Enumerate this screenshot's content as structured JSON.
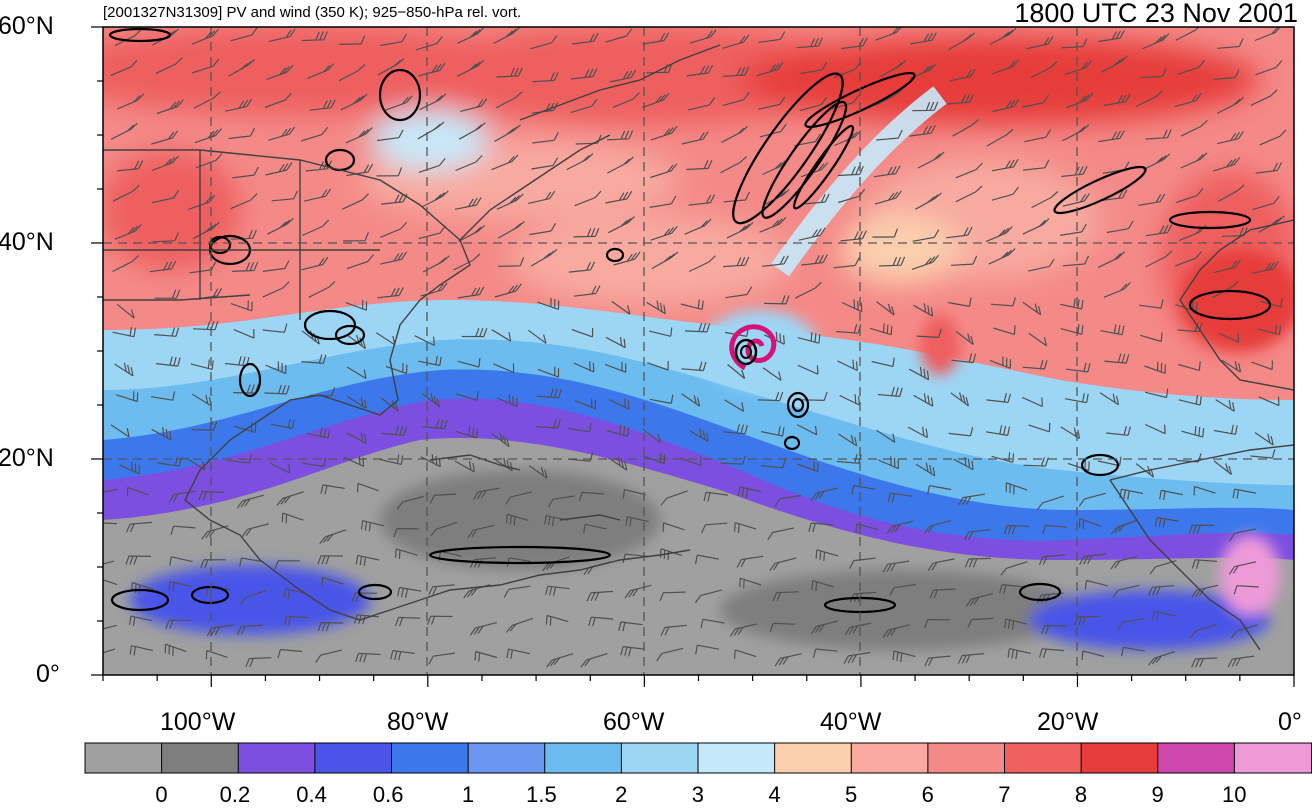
{
  "header": {
    "title_left": "[2001327N31309] PV and wind (350 K); 925−850-hPa rel. vort.",
    "title_right": "1800 UTC 23 Nov 2001"
  },
  "map": {
    "lat_labels": [
      "60°N",
      "40°N",
      "20°N",
      "0°"
    ],
    "lon_labels": [
      "100°W",
      "80°W",
      "60°W",
      "40°W",
      "20°W",
      "0°"
    ],
    "lat_range": [
      0,
      60
    ],
    "lon_range": [
      -110,
      0
    ],
    "gridlines": "dashed"
  },
  "colorbar": {
    "colors": [
      "#a0a0a0",
      "#7e7e7e",
      "#7c4fe0",
      "#4a54e8",
      "#3c78ec",
      "#6a98f0",
      "#6cbcf0",
      "#9dd6f5",
      "#c6e9fa",
      "#fbcfae",
      "#f8aaa0",
      "#f48a88",
      "#ee5f5e",
      "#e63c3a",
      "#cc48ac",
      "#ee9ad9"
    ],
    "labels": [
      "0",
      "0.2",
      "0.4",
      "0.6",
      "1",
      "1.5",
      "2",
      "3",
      "4",
      "5",
      "6",
      "7",
      "8",
      "9",
      "10"
    ]
  },
  "cyclone_marker_color": "#d6127a"
}
